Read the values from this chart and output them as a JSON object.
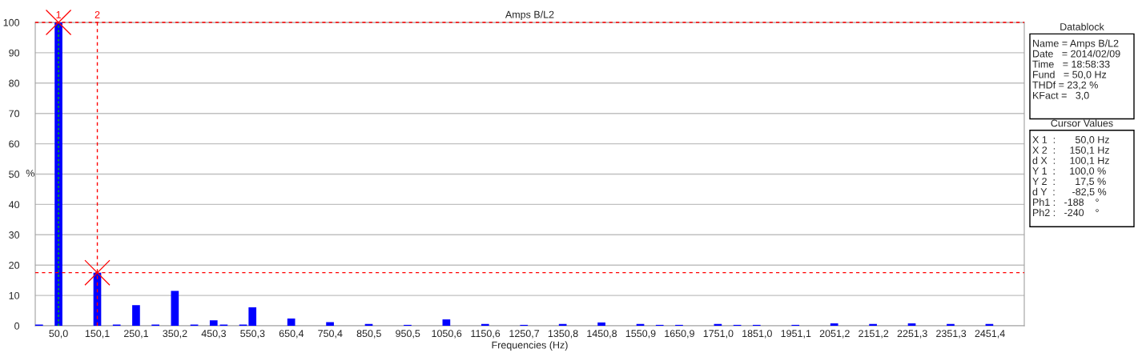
{
  "chart_data": {
    "type": "bar",
    "title": "Amps B/L2",
    "xlabel": "Frequencies (Hz)",
    "ylabel": "%",
    "x": [
      0,
      50,
      150,
      200,
      250,
      300,
      350,
      400,
      450,
      476,
      526,
      550,
      650,
      750,
      850,
      950,
      1050,
      1150,
      1250,
      1350,
      1450,
      1550,
      1600,
      1650,
      1750,
      1800,
      1850,
      1950,
      2050,
      2150,
      2250,
      2350,
      2450
    ],
    "series": [
      {
        "color": "#0000ff",
        "values": [
          0.4,
          100,
          17.5,
          0.4,
          6.8,
          0.4,
          11.5,
          0.4,
          1.8,
          0.4,
          0.4,
          6.1,
          2.4,
          1.2,
          0.6,
          0.3,
          2.1,
          0.6,
          0.3,
          0.6,
          1.1,
          0.6,
          0.3,
          0.3,
          0.6,
          0.3,
          0.3,
          0.3,
          0.8,
          0.6,
          0.8,
          0.6,
          0.6
        ]
      },
      {
        "type": "scatter",
        "color": "#ff0000",
        "marker": "cross",
        "x": [
          50,
          150.1
        ],
        "values": [
          100,
          17.5
        ]
      }
    ],
    "xlim": [
      -10,
      2540
    ],
    "xticks": [
      {
        "value": 50.0,
        "label": "50,0"
      },
      {
        "value": 150.1,
        "label": "150,1"
      },
      {
        "value": 250.1,
        "label": "250,1"
      },
      {
        "value": 350.2,
        "label": "350,2"
      },
      {
        "value": 450.3,
        "label": "450,3"
      },
      {
        "value": 550.3,
        "label": "550,3"
      },
      {
        "value": 650.4,
        "label": "650,4"
      },
      {
        "value": 750.4,
        "label": "750,4"
      },
      {
        "value": 850.5,
        "label": "850,5"
      },
      {
        "value": 950.5,
        "label": "950,5"
      },
      {
        "value": 1050.6,
        "label": "1050,6"
      },
      {
        "value": 1150.6,
        "label": "1150,6"
      },
      {
        "value": 1250.7,
        "label": "1250,7"
      },
      {
        "value": 1350.8,
        "label": "1350,8"
      },
      {
        "value": 1450.8,
        "label": "1450,8"
      },
      {
        "value": 1550.9,
        "label": "1550,9"
      },
      {
        "value": 1650.9,
        "label": "1650,9"
      },
      {
        "value": 1751.0,
        "label": "1751,0"
      },
      {
        "value": 1851.0,
        "label": "1851,0"
      },
      {
        "value": 1951.1,
        "label": "1951,1"
      },
      {
        "value": 2051.2,
        "label": "2051,2"
      },
      {
        "value": 2151.2,
        "label": "2151,2"
      },
      {
        "value": 2251.3,
        "label": "2251,3"
      },
      {
        "value": 2351.3,
        "label": "2351,3"
      },
      {
        "value": 2451.4,
        "label": "2451,4"
      }
    ],
    "ylim": [
      0,
      100
    ],
    "yticks": [
      0,
      10,
      20,
      30,
      40,
      50,
      60,
      70,
      80,
      90,
      100
    ],
    "grid": "y",
    "ref_lines": [
      {
        "axis": "x",
        "value": 50,
        "color": "#00c000",
        "line_style": "dotted"
      },
      {
        "axis": "x",
        "value": 150.1,
        "color": "#ff0000",
        "line_style": "dashed"
      },
      {
        "axis": "y",
        "value": 100,
        "color": "#ff0000",
        "line_style": "dashed"
      },
      {
        "axis": "y",
        "value": 17.5,
        "color": "#ff0000",
        "line_style": "dashed"
      }
    ],
    "annotations": [
      {
        "text": "1",
        "x": 50,
        "y": 100
      },
      {
        "text": "2",
        "x": 150.1,
        "y": 100
      },
      "Datablock\nName = Amps B/L2\nDate   = 2014/02/09\nTime   = 18:58:33\nFund   = 50,0 Hz\nTHDf = 23,2 %\nKFact =   3,0\n",
      "Cursor Values\nX 1  :       50,0 Hz\nX 2  :     150,1 Hz\nd X  :     100,1 Hz\nY 1  :     100,0 %\nY 2  :       17,5 %\nd Y  :      -82,5 %\nPh1 :   -188    °\nPh2 :   -240    °"
    ]
  }
}
